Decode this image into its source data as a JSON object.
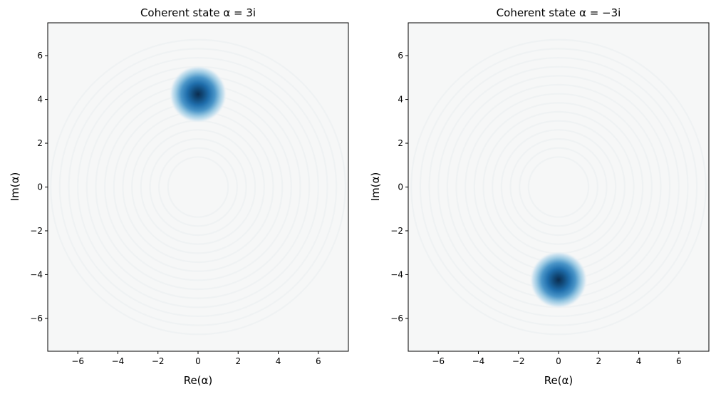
{
  "chart_data": [
    {
      "type": "heatmap",
      "title": "Coherent state α = 3i",
      "xlabel": "Re(α)",
      "ylabel": "Im(α)",
      "xlim": [
        -7.5,
        7.5
      ],
      "ylim": [
        -7.5,
        7.5
      ],
      "xticks": [
        -6,
        -4,
        -2,
        0,
        2,
        4,
        6
      ],
      "yticks": [
        -6,
        -4,
        -2,
        0,
        2,
        4,
        6
      ],
      "xtick_labels": [
        "−6",
        "−4",
        "−2",
        "0",
        "2",
        "4",
        "6"
      ],
      "ytick_labels": [
        "−6",
        "−4",
        "−2",
        "0",
        "2",
        "4",
        "6"
      ],
      "peak": {
        "x": 0,
        "y": 4.24
      },
      "colormap": "RdBu (diverging, centered at zero)",
      "grid": false
    },
    {
      "type": "heatmap",
      "title": "Coherent state α = −3i",
      "xlabel": "Re(α)",
      "ylabel": "Im(α)",
      "xlim": [
        -7.5,
        7.5
      ],
      "ylim": [
        -7.5,
        7.5
      ],
      "xticks": [
        -6,
        -4,
        -2,
        0,
        2,
        4,
        6
      ],
      "yticks": [
        -6,
        -4,
        -2,
        0,
        2,
        4,
        6
      ],
      "xtick_labels": [
        "−6",
        "−4",
        "−2",
        "0",
        "2",
        "4",
        "6"
      ],
      "ytick_labels": [
        "−6",
        "−4",
        "−2",
        "0",
        "2",
        "4",
        "6"
      ],
      "peak": {
        "x": 0,
        "y": -4.24
      },
      "colormap": "RdBu (diverging, centered at zero)",
      "grid": false
    }
  ],
  "colors": {
    "background": "#f6f7f7",
    "peak_core": "#0b2d4f",
    "peak_mid": "#1c6fb0",
    "peak_outer": "#6aaed6",
    "axis": "#000000"
  }
}
